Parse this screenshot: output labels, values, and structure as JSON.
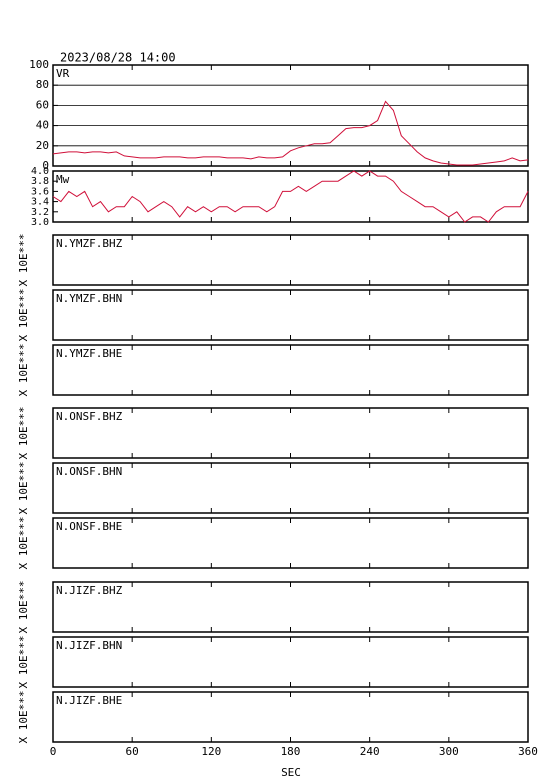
{
  "title": "2023/08/28 14:00",
  "chart_data": [
    {
      "type": "line",
      "x": [
        0,
        6,
        12,
        18,
        24,
        30,
        36,
        42,
        48,
        54,
        60,
        66,
        72,
        78,
        84,
        90,
        96,
        102,
        108,
        114,
        120,
        126,
        132,
        138,
        144,
        150,
        156,
        162,
        168,
        174,
        180,
        186,
        192,
        198,
        204,
        210,
        216,
        222,
        228,
        234,
        240,
        246,
        252,
        258,
        264,
        270,
        276,
        282,
        288,
        294,
        300,
        306,
        312,
        318,
        324,
        330,
        336,
        342,
        348,
        354,
        360
      ],
      "series": [
        {
          "name": "VR",
          "color": "#d0103a",
          "values": [
            12,
            13,
            14,
            14,
            13,
            14,
            14,
            13,
            14,
            10,
            9,
            8,
            8,
            8,
            9,
            9,
            9,
            8,
            8,
            9,
            9,
            9,
            8,
            8,
            8,
            7,
            9,
            8,
            8,
            9,
            15,
            18,
            20,
            22,
            22,
            23,
            30,
            37,
            38,
            38,
            40,
            45,
            64,
            55,
            30,
            22,
            14,
            8,
            5,
            3,
            2,
            1,
            1,
            1,
            2,
            3,
            4,
            5,
            8,
            5,
            6
          ]
        }
      ],
      "ylim": [
        0,
        100
      ],
      "yticks": [
        0,
        20,
        40,
        60,
        80,
        100
      ],
      "grid": true
    },
    {
      "type": "line",
      "x": [
        0,
        6,
        12,
        18,
        24,
        30,
        36,
        42,
        48,
        54,
        60,
        66,
        72,
        78,
        84,
        90,
        96,
        102,
        108,
        114,
        120,
        126,
        132,
        138,
        144,
        150,
        156,
        162,
        168,
        174,
        180,
        186,
        192,
        198,
        204,
        210,
        216,
        222,
        228,
        234,
        240,
        246,
        252,
        258,
        264,
        270,
        276,
        282,
        288,
        294,
        300,
        306,
        312,
        318,
        324,
        330,
        336,
        342,
        348,
        354,
        360
      ],
      "series": [
        {
          "name": "Mw",
          "color": "#d0103a",
          "values": [
            3.5,
            3.4,
            3.6,
            3.5,
            3.6,
            3.3,
            3.4,
            3.2,
            3.3,
            3.3,
            3.5,
            3.4,
            3.2,
            3.3,
            3.4,
            3.3,
            3.1,
            3.3,
            3.2,
            3.3,
            3.2,
            3.3,
            3.3,
            3.2,
            3.3,
            3.3,
            3.3,
            3.2,
            3.3,
            3.6,
            3.6,
            3.7,
            3.6,
            3.7,
            3.8,
            3.8,
            3.8,
            3.9,
            4.0,
            3.9,
            4.0,
            3.9,
            3.9,
            3.8,
            3.6,
            3.5,
            3.4,
            3.3,
            3.3,
            3.2,
            3.1,
            3.2,
            3.0,
            3.1,
            3.1,
            3.0,
            3.2,
            3.3,
            3.3,
            3.3,
            3.6
          ]
        }
      ],
      "ylim": [
        3.0,
        4.0
      ],
      "yticks": [
        {
          "value": 3.0,
          "label": "3.0"
        },
        3.2,
        3.4,
        3.6,
        3.8,
        {
          "value": 4.0,
          "label": "4.0"
        }
      ],
      "grid": false
    }
  ],
  "panels": [
    {
      "label": "N.YMZF.BHZ",
      "scale": "X 10E***"
    },
    {
      "label": "N.YMZF.BHN",
      "scale": "X 10E***"
    },
    {
      "label": "N.YMZF.BHE",
      "scale": "X 10E***"
    },
    {
      "label": "N.ONSF.BHZ",
      "scale": "X 10E***"
    },
    {
      "label": "N.ONSF.BHN",
      "scale": "X 10E***"
    },
    {
      "label": "N.ONSF.BHE",
      "scale": "X 10E***"
    },
    {
      "label": "N.JIZF.BHZ",
      "scale": "X 10E***"
    },
    {
      "label": "N.JIZF.BHN",
      "scale": "X 10E***"
    },
    {
      "label": "N.JIZF.BHE",
      "scale": "X 10E***"
    }
  ],
  "x_axis": {
    "xlim": [
      0,
      360
    ],
    "xticks": [
      0,
      60,
      120,
      180,
      240,
      300,
      360
    ],
    "label": "SEC"
  }
}
